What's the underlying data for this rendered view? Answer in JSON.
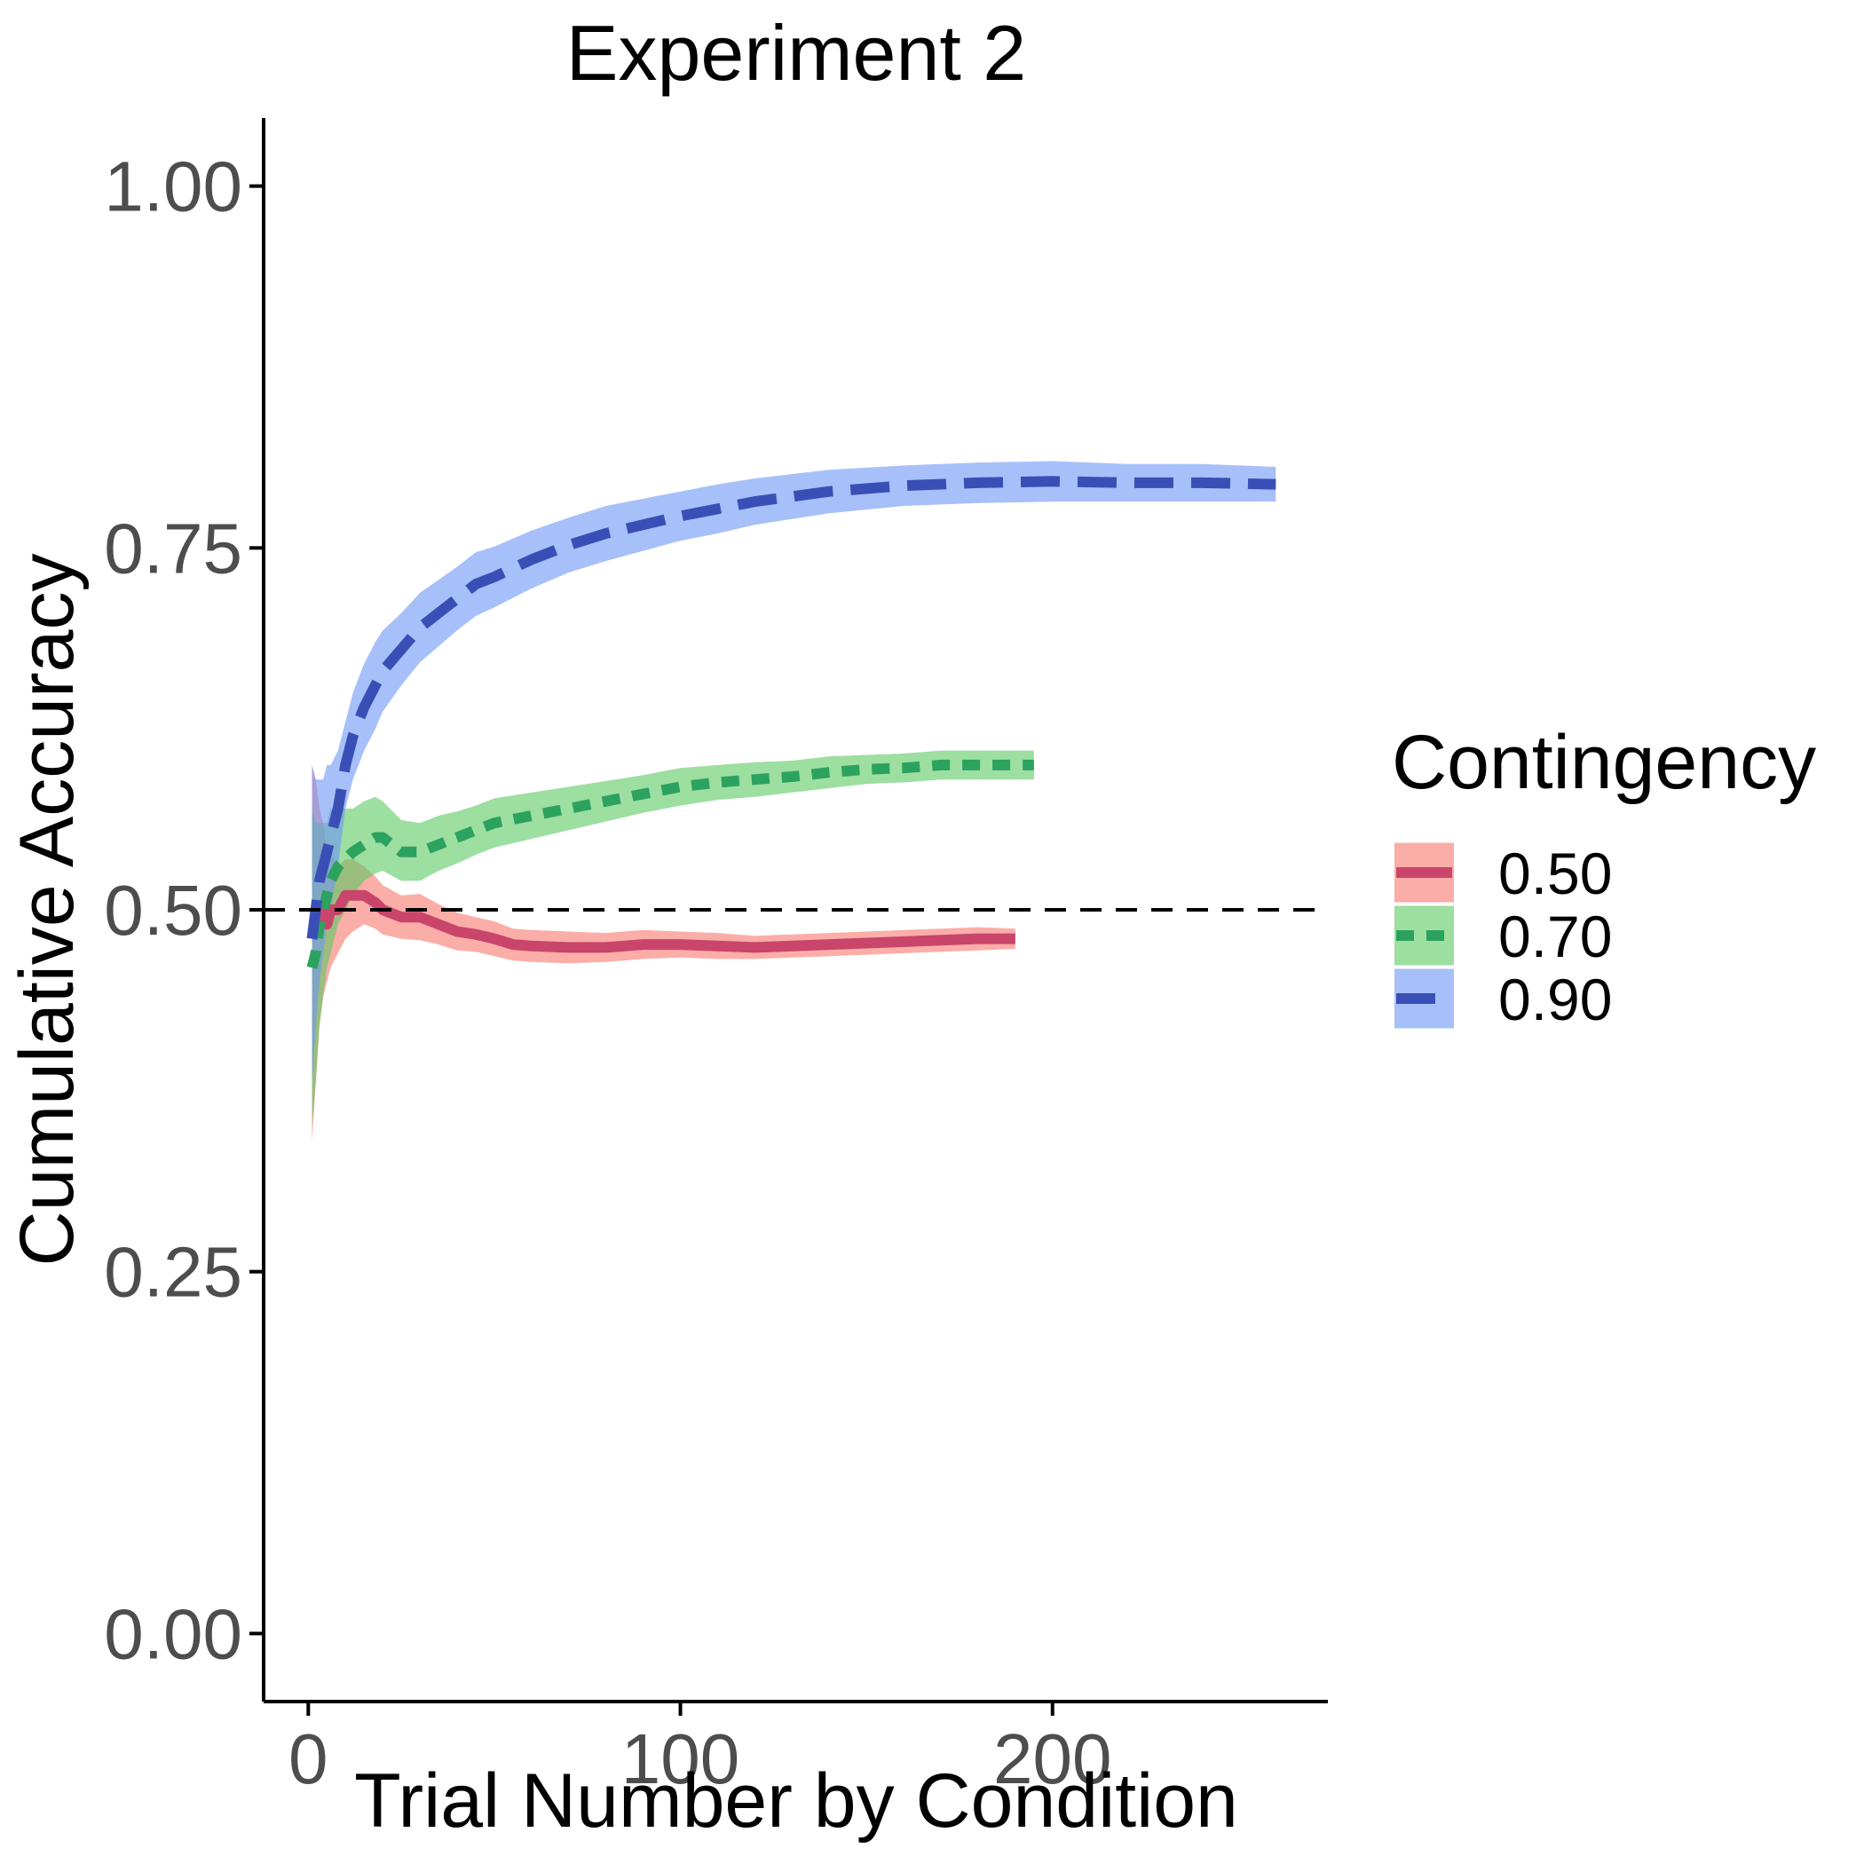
{
  "chart_data": {
    "type": "line",
    "title": "Experiment 2",
    "xlabel": "Trial Number by Condition",
    "ylabel": "Cumulative Accuracy",
    "xlim": [
      -12,
      274
    ],
    "ylim": [
      -0.047,
      1.047
    ],
    "x_ticks": [
      0,
      100,
      200
    ],
    "x_tick_labels": [
      "0",
      "100",
      "200"
    ],
    "y_ticks": [
      0.0,
      0.25,
      0.5,
      0.75,
      1.0
    ],
    "y_tick_labels": [
      "0.00",
      "0.25",
      "0.50",
      "0.75",
      "1.00"
    ],
    "reference_line": {
      "y": 0.5,
      "style": "dashed",
      "color": "#000000"
    },
    "grid": false,
    "legend": {
      "title": "Contingency",
      "placement": "right"
    },
    "series": [
      {
        "name": "0.50",
        "line_color": "#c9456b",
        "band_color": "#f8766d",
        "dash": "solid",
        "x": [
          1,
          2,
          3,
          4,
          5,
          6,
          8,
          10,
          12,
          15,
          18,
          20,
          25,
          30,
          35,
          40,
          45,
          50,
          55,
          60,
          70,
          80,
          90,
          100,
          110,
          120,
          130,
          140,
          150,
          160,
          170,
          180,
          190
        ],
        "y": [
          0.48,
          0.49,
          0.5,
          0.5,
          0.49,
          0.5,
          0.5,
          0.51,
          0.51,
          0.51,
          0.505,
          0.5,
          0.495,
          0.495,
          0.49,
          0.485,
          0.483,
          0.48,
          0.476,
          0.475,
          0.474,
          0.474,
          0.476,
          0.476,
          0.475,
          0.474,
          0.475,
          0.476,
          0.477,
          0.478,
          0.479,
          0.48,
          0.48
        ],
        "lower": [
          0.34,
          0.38,
          0.42,
          0.44,
          0.45,
          0.46,
          0.47,
          0.48,
          0.485,
          0.49,
          0.487,
          0.483,
          0.48,
          0.479,
          0.476,
          0.472,
          0.471,
          0.468,
          0.465,
          0.464,
          0.463,
          0.464,
          0.466,
          0.467,
          0.466,
          0.466,
          0.467,
          0.468,
          0.469,
          0.47,
          0.471,
          0.472,
          0.473
        ],
        "upper": [
          0.6,
          0.59,
          0.57,
          0.56,
          0.54,
          0.54,
          0.53,
          0.535,
          0.535,
          0.53,
          0.523,
          0.517,
          0.51,
          0.511,
          0.504,
          0.498,
          0.495,
          0.492,
          0.487,
          0.486,
          0.485,
          0.484,
          0.486,
          0.485,
          0.484,
          0.482,
          0.483,
          0.484,
          0.485,
          0.486,
          0.487,
          0.488,
          0.487
        ]
      },
      {
        "name": "0.70",
        "line_color": "#2ca25f",
        "band_color": "#5cc863",
        "dash": "short",
        "x": [
          1,
          2,
          3,
          4,
          5,
          6,
          8,
          10,
          12,
          15,
          18,
          20,
          25,
          30,
          35,
          40,
          45,
          50,
          60,
          70,
          80,
          90,
          100,
          110,
          120,
          130,
          140,
          150,
          160,
          170,
          180,
          195
        ],
        "y": [
          0.46,
          0.47,
          0.49,
          0.5,
          0.51,
          0.52,
          0.53,
          0.535,
          0.54,
          0.545,
          0.55,
          0.55,
          0.54,
          0.54,
          0.545,
          0.55,
          0.555,
          0.56,
          0.565,
          0.57,
          0.575,
          0.58,
          0.585,
          0.588,
          0.59,
          0.592,
          0.595,
          0.597,
          0.598,
          0.6,
          0.6,
          0.6
        ],
        "lower": [
          0.35,
          0.38,
          0.42,
          0.44,
          0.46,
          0.47,
          0.49,
          0.5,
          0.51,
          0.52,
          0.525,
          0.527,
          0.52,
          0.52,
          0.527,
          0.532,
          0.538,
          0.543,
          0.549,
          0.555,
          0.561,
          0.567,
          0.572,
          0.576,
          0.578,
          0.581,
          0.584,
          0.587,
          0.588,
          0.59,
          0.59,
          0.59
        ],
        "upper": [
          0.57,
          0.56,
          0.56,
          0.56,
          0.56,
          0.57,
          0.57,
          0.57,
          0.57,
          0.575,
          0.578,
          0.575,
          0.562,
          0.56,
          0.565,
          0.568,
          0.572,
          0.577,
          0.581,
          0.585,
          0.589,
          0.593,
          0.598,
          0.6,
          0.602,
          0.603,
          0.606,
          0.607,
          0.608,
          0.61,
          0.61,
          0.61
        ]
      },
      {
        "name": "0.90",
        "line_color": "#3a4fb6",
        "band_color": "#6c96f5",
        "dash": "long",
        "x": [
          1,
          2,
          3,
          4,
          5,
          6,
          8,
          10,
          12,
          15,
          18,
          20,
          25,
          30,
          35,
          40,
          45,
          50,
          60,
          70,
          80,
          90,
          100,
          110,
          120,
          140,
          160,
          180,
          200,
          220,
          240,
          260
        ],
        "y": [
          0.48,
          0.5,
          0.52,
          0.53,
          0.54,
          0.55,
          0.57,
          0.6,
          0.62,
          0.64,
          0.655,
          0.665,
          0.68,
          0.695,
          0.705,
          0.715,
          0.725,
          0.73,
          0.742,
          0.752,
          0.76,
          0.766,
          0.772,
          0.777,
          0.782,
          0.789,
          0.793,
          0.795,
          0.796,
          0.795,
          0.795,
          0.794
        ],
        "lower": [
          0.38,
          0.42,
          0.45,
          0.47,
          0.49,
          0.5,
          0.53,
          0.57,
          0.59,
          0.61,
          0.625,
          0.637,
          0.655,
          0.671,
          0.682,
          0.693,
          0.703,
          0.709,
          0.722,
          0.733,
          0.741,
          0.748,
          0.755,
          0.76,
          0.766,
          0.774,
          0.779,
          0.781,
          0.782,
          0.782,
          0.782,
          0.782
        ],
        "upper": [
          0.6,
          0.59,
          0.59,
          0.59,
          0.6,
          0.6,
          0.61,
          0.63,
          0.65,
          0.67,
          0.685,
          0.693,
          0.705,
          0.719,
          0.728,
          0.737,
          0.747,
          0.751,
          0.762,
          0.771,
          0.779,
          0.784,
          0.789,
          0.794,
          0.798,
          0.804,
          0.807,
          0.809,
          0.81,
          0.808,
          0.808,
          0.806
        ]
      }
    ]
  }
}
